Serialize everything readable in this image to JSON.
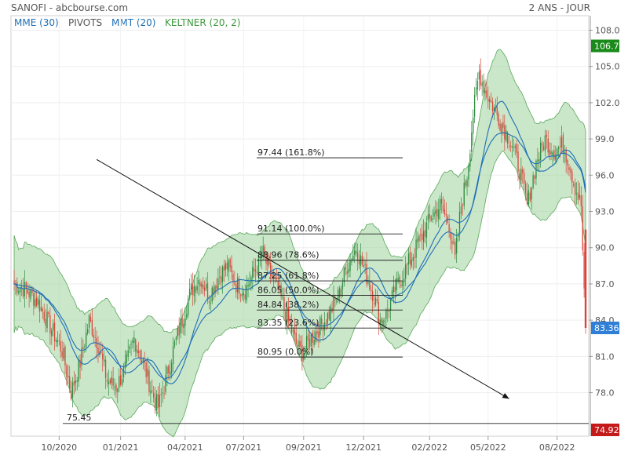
{
  "header": {
    "title": "SANOFI - abcbourse.com",
    "period": "2 ANS - JOUR"
  },
  "legend": [
    {
      "label": "MME (30)",
      "color": "#1f6fb5"
    },
    {
      "label": "PIVOTS",
      "color": "#555555"
    },
    {
      "label": "MMT (20)",
      "color": "#1f6fb5"
    },
    {
      "label": "KELTNER (20, 2)",
      "color": "#3d9a3d"
    }
  ],
  "chart_data": {
    "type": "candlestick",
    "ylim": [
      74.4,
      109.2
    ],
    "y_ticks": [
      78.0,
      81.0,
      84.0,
      87.0,
      90.0,
      93.0,
      96.0,
      99.0,
      102.0,
      105.0,
      108.0
    ],
    "x_ticks": [
      "10/2020",
      "01/2021",
      "04/2021",
      "07/2021",
      "09/2021",
      "12/2021",
      "02/2022",
      "05/2022",
      "08/2022"
    ],
    "price_path": [
      [
        0,
        87.0
      ],
      [
        8,
        86.5
      ],
      [
        16,
        85.5
      ],
      [
        24,
        83.5
      ],
      [
        32,
        81.5
      ],
      [
        38,
        78.0
      ],
      [
        44,
        80.5
      ],
      [
        50,
        84.0
      ],
      [
        56,
        82.0
      ],
      [
        62,
        79.0
      ],
      [
        68,
        78.5
      ],
      [
        74,
        80.0
      ],
      [
        80,
        82.5
      ],
      [
        86,
        80.5
      ],
      [
        92,
        78.0
      ],
      [
        96,
        76.8
      ],
      [
        100,
        78.5
      ],
      [
        106,
        81.5
      ],
      [
        112,
        84.0
      ],
      [
        118,
        86.5
      ],
      [
        124,
        87.5
      ],
      [
        130,
        86.0
      ],
      [
        136,
        87.5
      ],
      [
        142,
        88.5
      ],
      [
        148,
        87.0
      ],
      [
        154,
        86.5
      ],
      [
        160,
        88.0
      ],
      [
        166,
        89.5
      ],
      [
        170,
        88.0
      ],
      [
        176,
        86.5
      ],
      [
        180,
        85.0
      ],
      [
        184,
        83.5
      ],
      [
        188,
        82.0
      ],
      [
        192,
        81.3
      ],
      [
        198,
        82.5
      ],
      [
        204,
        83.5
      ],
      [
        210,
        84.5
      ],
      [
        216,
        86.0
      ],
      [
        222,
        88.5
      ],
      [
        228,
        90.0
      ],
      [
        234,
        88.0
      ],
      [
        240,
        86.0
      ],
      [
        244,
        84.0
      ],
      [
        248,
        84.5
      ],
      [
        254,
        86.5
      ],
      [
        260,
        88.0
      ],
      [
        266,
        89.5
      ],
      [
        272,
        91.0
      ],
      [
        278,
        92.5
      ],
      [
        284,
        93.5
      ],
      [
        290,
        92.0
      ],
      [
        294,
        89.0
      ],
      [
        298,
        93.5
      ],
      [
        302,
        96.0
      ],
      [
        306,
        101.0
      ],
      [
        310,
        104.5
      ],
      [
        314,
        103.0
      ],
      [
        320,
        101.5
      ],
      [
        326,
        100.0
      ],
      [
        332,
        98.5
      ],
      [
        338,
        96.0
      ],
      [
        342,
        93.5
      ],
      [
        348,
        97.0
      ],
      [
        354,
        99.0
      ],
      [
        360,
        98.0
      ],
      [
        366,
        98.5
      ],
      [
        370,
        97.0
      ],
      [
        374,
        95.0
      ],
      [
        378,
        93.5
      ],
      [
        380,
        86.0
      ],
      [
        381,
        83.36
      ]
    ],
    "last_price": 83.36,
    "last_price_box": "106.7",
    "min_price_box": "74.92",
    "support_label": "75.45",
    "support_value": 75.45,
    "trendline": {
      "from": [
        55,
        97.3
      ],
      "to": [
        330,
        77.5
      ]
    },
    "fibonacci": [
      {
        "label": "97.44  (161.8%)",
        "value": 97.44
      },
      {
        "label": "91.14  (100.0%)",
        "value": 91.14
      },
      {
        "label": "88.96  (78.6%)",
        "value": 88.96
      },
      {
        "label": "87.25  (61.8%)",
        "value": 87.25
      },
      {
        "label": "86.05  (50.0%)",
        "value": 86.05
      },
      {
        "label": "84.84  (38.2%)",
        "value": 84.84
      },
      {
        "label": "83.35  (23.6%)",
        "value": 83.35
      },
      {
        "label": "80.95  (0.0%)",
        "value": 80.95
      }
    ],
    "colors": {
      "up": "#2e8b3e",
      "down": "#d9453a",
      "band_fill": "#9fd49f",
      "band_line": "#5aa85a",
      "ma": "#1f6fb5",
      "last_badge": "#2f7fd6",
      "top_badge": "#1a8a1a",
      "low_badge": "#c41a1a"
    }
  }
}
